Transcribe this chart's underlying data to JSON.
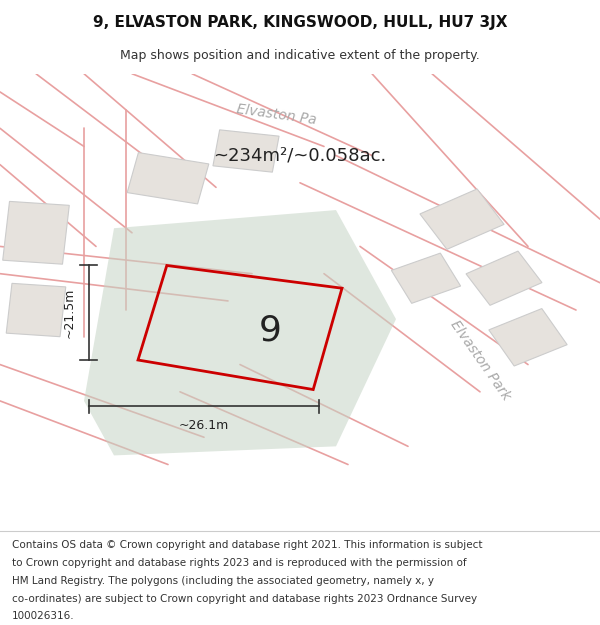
{
  "title": "9, ELVASTON PARK, KINGSWOOD, HULL, HU7 3JX",
  "subtitle": "Map shows position and indicative extent of the property.",
  "area_text": "~234m²/~0.058ac.",
  "plot_number": "9",
  "dim_vertical": "~21.5m",
  "dim_horizontal": "~26.1m",
  "footer_lines": [
    "Contains OS data © Crown copyright and database right 2021. This information is subject",
    "to Crown copyright and database rights 2023 and is reproduced with the permission of",
    "HM Land Registry. The polygons (including the associated geometry, namely x, y",
    "co-ordinates) are subject to Crown copyright and database rights 2023 Ordnance Survey",
    "100026316."
  ],
  "bg_color": "#f0eeeb",
  "map_bg": "#f0eeeb",
  "road_color": "#e8a0a0",
  "plot_fill": "#c5d4c5",
  "plot_edge_color": "#cc0000",
  "dim_line_color": "#333333",
  "text_color": "#333333",
  "street_text_color": "#aaaaaa",
  "title_fontsize": 11,
  "subtitle_fontsize": 9,
  "footer_fontsize": 7.5
}
